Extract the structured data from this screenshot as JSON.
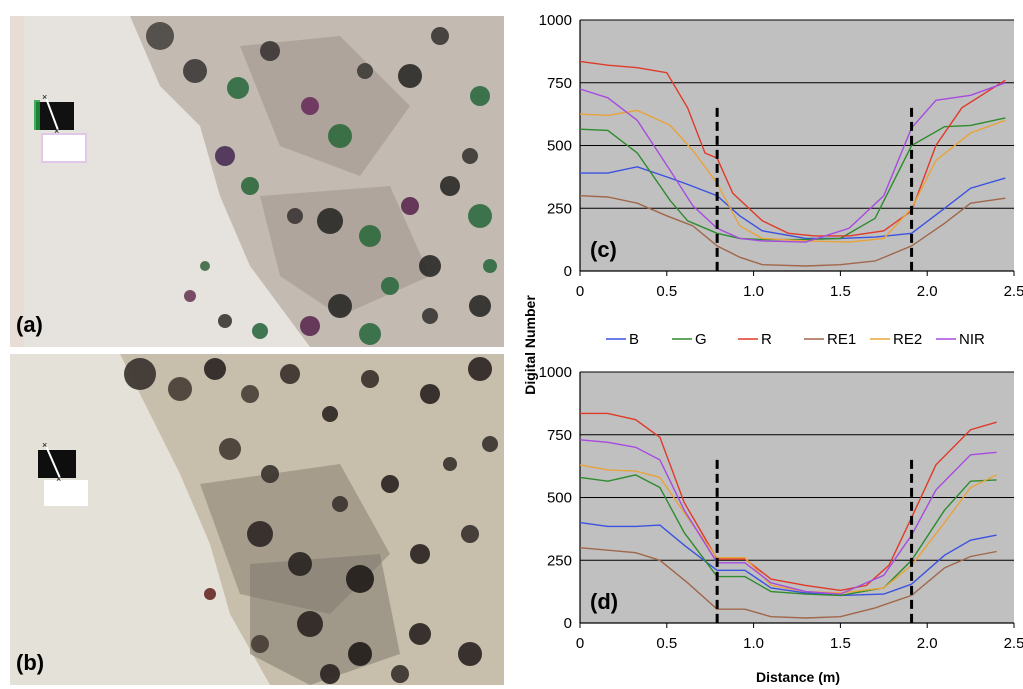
{
  "panels": {
    "a": "(a)",
    "b": "(b)",
    "c": "(c)",
    "d": "(d)"
  },
  "colors": {
    "B": "#3b52e0",
    "G": "#2e8b2e",
    "R": "#e03a2a",
    "RE1": "#a0674a",
    "RE2": "#e8a33a",
    "NIR": "#a74be0",
    "plot_bg": "#c0c0c0"
  },
  "chart_data": [
    {
      "type": "line",
      "panel": "(c)",
      "xlabel": "",
      "ylabel": "Digital Number",
      "xlim": [
        0,
        2.5
      ],
      "ylim": [
        0,
        1000
      ],
      "xticks": [
        "0",
        "0.5",
        "1.0",
        "1.5",
        "2.0",
        "2.5"
      ],
      "yticks": [
        "0",
        "250",
        "500",
        "750",
        "1000"
      ],
      "grid": "horizontal",
      "dashed_markers_x": [
        0.79,
        1.91
      ],
      "series": [
        {
          "name": "B",
          "x": [
            0,
            0.16,
            0.33,
            0.52,
            0.62,
            0.79,
            0.92,
            1.05,
            1.3,
            1.5,
            1.7,
            1.91,
            2.1,
            2.25,
            2.45
          ],
          "y": [
            390,
            390,
            415,
            370,
            345,
            300,
            220,
            160,
            130,
            130,
            135,
            150,
            250,
            330,
            370
          ]
        },
        {
          "name": "G",
          "x": [
            0,
            0.16,
            0.33,
            0.52,
            0.62,
            0.79,
            0.92,
            1.05,
            1.3,
            1.5,
            1.7,
            1.91,
            2.1,
            2.25,
            2.45
          ],
          "y": [
            565,
            560,
            470,
            280,
            200,
            150,
            130,
            125,
            125,
            130,
            210,
            500,
            575,
            580,
            610
          ]
        },
        {
          "name": "R",
          "x": [
            0,
            0.16,
            0.33,
            0.5,
            0.62,
            0.72,
            0.79,
            0.88,
            1.05,
            1.2,
            1.35,
            1.55,
            1.75,
            1.91,
            2.05,
            2.2,
            2.45
          ],
          "y": [
            835,
            820,
            810,
            790,
            650,
            470,
            450,
            310,
            200,
            150,
            140,
            140,
            160,
            240,
            500,
            650,
            760
          ]
        },
        {
          "name": "RE1",
          "x": [
            0,
            0.16,
            0.33,
            0.5,
            0.65,
            0.79,
            0.92,
            1.05,
            1.3,
            1.5,
            1.7,
            1.91,
            2.1,
            2.25,
            2.45
          ],
          "y": [
            300,
            295,
            270,
            220,
            180,
            100,
            55,
            25,
            20,
            25,
            40,
            100,
            190,
            270,
            290
          ]
        },
        {
          "name": "RE2",
          "x": [
            0,
            0.16,
            0.33,
            0.52,
            0.65,
            0.79,
            0.92,
            1.05,
            1.3,
            1.55,
            1.75,
            1.91,
            2.05,
            2.25,
            2.45
          ],
          "y": [
            625,
            620,
            640,
            580,
            480,
            350,
            180,
            130,
            120,
            115,
            130,
            250,
            440,
            550,
            600
          ]
        },
        {
          "name": "NIR",
          "x": [
            0,
            0.16,
            0.33,
            0.52,
            0.65,
            0.79,
            0.92,
            1.05,
            1.3,
            1.55,
            1.75,
            1.91,
            2.05,
            2.25,
            2.45
          ],
          "y": [
            725,
            690,
            600,
            400,
            260,
            170,
            130,
            120,
            115,
            170,
            300,
            570,
            680,
            700,
            750
          ]
        }
      ]
    },
    {
      "type": "line",
      "panel": "(d)",
      "xlabel": "Distance (m)",
      "ylabel": "",
      "xlim": [
        0,
        2.5
      ],
      "ylim": [
        0,
        1000
      ],
      "xticks": [
        "0",
        "0.5",
        "1.0",
        "1.5",
        "2.0",
        "2.5"
      ],
      "yticks": [
        "0",
        "250",
        "500",
        "750",
        "1000"
      ],
      "grid": "horizontal",
      "dashed_markers_x": [
        0.79,
        1.91
      ],
      "series": [
        {
          "name": "B",
          "x": [
            0,
            0.16,
            0.32,
            0.46,
            0.6,
            0.79,
            0.95,
            1.1,
            1.3,
            1.5,
            1.75,
            1.91,
            2.1,
            2.25,
            2.4
          ],
          "y": [
            400,
            385,
            385,
            390,
            310,
            210,
            210,
            140,
            120,
            110,
            115,
            155,
            270,
            330,
            350
          ]
        },
        {
          "name": "G",
          "x": [
            0,
            0.16,
            0.32,
            0.46,
            0.6,
            0.79,
            0.95,
            1.1,
            1.3,
            1.5,
            1.75,
            1.91,
            2.1,
            2.25,
            2.4
          ],
          "y": [
            580,
            565,
            590,
            540,
            360,
            185,
            185,
            125,
            115,
            110,
            140,
            250,
            450,
            565,
            570
          ]
        },
        {
          "name": "R",
          "x": [
            0,
            0.16,
            0.32,
            0.46,
            0.6,
            0.79,
            0.95,
            1.1,
            1.3,
            1.5,
            1.65,
            1.78,
            1.91,
            2.05,
            2.25,
            2.4
          ],
          "y": [
            835,
            835,
            810,
            740,
            480,
            255,
            255,
            175,
            150,
            130,
            150,
            230,
            420,
            630,
            770,
            800
          ]
        },
        {
          "name": "RE1",
          "x": [
            0,
            0.16,
            0.32,
            0.46,
            0.62,
            0.79,
            0.95,
            1.1,
            1.3,
            1.5,
            1.7,
            1.91,
            2.1,
            2.25,
            2.4
          ],
          "y": [
            300,
            290,
            280,
            250,
            160,
            55,
            55,
            25,
            20,
            25,
            60,
            110,
            220,
            265,
            285
          ]
        },
        {
          "name": "RE2",
          "x": [
            0,
            0.16,
            0.32,
            0.46,
            0.62,
            0.79,
            0.95,
            1.1,
            1.3,
            1.5,
            1.75,
            1.91,
            2.1,
            2.25,
            2.4
          ],
          "y": [
            630,
            610,
            605,
            580,
            420,
            260,
            260,
            150,
            125,
            120,
            140,
            230,
            400,
            540,
            590
          ]
        },
        {
          "name": "NIR",
          "x": [
            0,
            0.16,
            0.32,
            0.46,
            0.6,
            0.79,
            0.95,
            1.1,
            1.3,
            1.5,
            1.75,
            1.91,
            2.05,
            2.25,
            2.4
          ],
          "y": [
            730,
            720,
            700,
            650,
            450,
            240,
            240,
            160,
            125,
            115,
            190,
            350,
            530,
            670,
            680
          ]
        }
      ]
    }
  ],
  "legend": {
    "items": [
      "B",
      "G",
      "R",
      "RE1",
      "RE2",
      "NIR"
    ],
    "placement": "between-charts"
  }
}
